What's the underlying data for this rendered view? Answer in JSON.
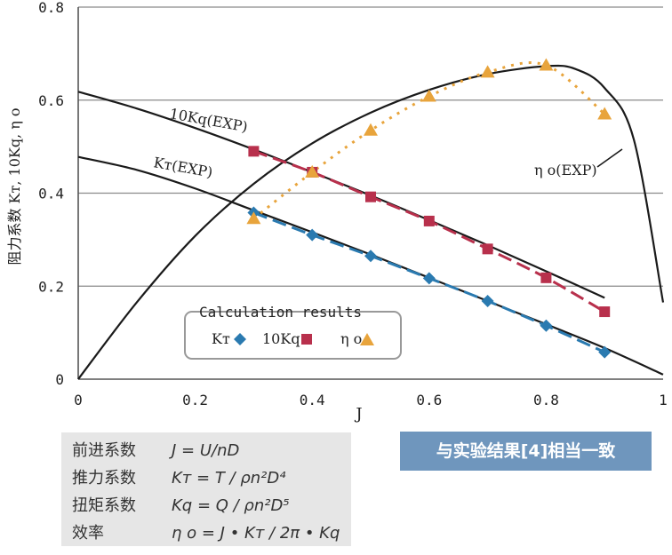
{
  "chart_data": {
    "type": "line",
    "xlabel": "J",
    "ylabel": "阻力系数  Kт, 10Kq, η o",
    "xlim": [
      0,
      1
    ],
    "ylim": [
      0,
      0.8
    ],
    "xticks": [
      "0",
      "0.2",
      "0.4",
      "0.6",
      "0.8",
      "1"
    ],
    "yticks": [
      "0",
      "0.2",
      "0.4",
      "0.6",
      "0.8"
    ],
    "grid": "horizontal",
    "curve_labels": {
      "kq": "10Kq(EXP)",
      "kt": "Kт(EXP)",
      "eta": "η o(EXP)"
    },
    "exp_curves": [
      {
        "key": "kt",
        "color": "#1a1a1a",
        "x": [
          0,
          0.1,
          0.2,
          0.3,
          0.4,
          0.5,
          0.6,
          0.7,
          0.8,
          0.9,
          1.0
        ],
        "y": [
          0.478,
          0.45,
          0.41,
          0.363,
          0.316,
          0.268,
          0.218,
          0.168,
          0.118,
          0.067,
          0.01
        ]
      },
      {
        "key": "kq",
        "color": "#1a1a1a",
        "x": [
          0,
          0.1,
          0.2,
          0.3,
          0.4,
          0.5,
          0.6,
          0.7,
          0.8,
          0.9
        ],
        "y": [
          0.618,
          0.582,
          0.54,
          0.494,
          0.445,
          0.395,
          0.342,
          0.288,
          0.232,
          0.175
        ]
      },
      {
        "key": "eta",
        "color": "#1a1a1a",
        "x": [
          0,
          0.1,
          0.2,
          0.3,
          0.4,
          0.5,
          0.6,
          0.7,
          0.8,
          0.85,
          0.9,
          0.95,
          1.0
        ],
        "y": [
          0,
          0.165,
          0.308,
          0.42,
          0.507,
          0.573,
          0.622,
          0.656,
          0.673,
          0.667,
          0.626,
          0.515,
          0.165
        ]
      }
    ],
    "series": [
      {
        "name": "Kт",
        "marker": "diamond",
        "color": "#2a7ab0",
        "x": [
          0.3,
          0.4,
          0.5,
          0.6,
          0.7,
          0.8,
          0.9
        ],
        "y": [
          0.358,
          0.31,
          0.265,
          0.217,
          0.168,
          0.115,
          0.058
        ]
      },
      {
        "name": "10Kq",
        "marker": "square",
        "color": "#b8304c",
        "x": [
          0.3,
          0.4,
          0.5,
          0.6,
          0.7,
          0.8,
          0.9
        ],
        "y": [
          0.49,
          0.445,
          0.392,
          0.34,
          0.28,
          0.218,
          0.145
        ]
      },
      {
        "name": "η o",
        "marker": "triangle",
        "color": "#e8a43c",
        "x": [
          0.3,
          0.4,
          0.5,
          0.6,
          0.7,
          0.8,
          0.9
        ],
        "y": [
          0.345,
          0.445,
          0.535,
          0.608,
          0.66,
          0.675,
          0.57
        ]
      }
    ],
    "legend": {
      "title": "Calculation results",
      "placement": "bottom-left"
    }
  },
  "formulas": [
    {
      "label": "前进系数",
      "expr": "J = U/nD"
    },
    {
      "label": "推力系数",
      "expr": "Kт = T / ρn²D⁴"
    },
    {
      "label": "扭矩系数",
      "expr": "Kq = Q / ρn²D⁵"
    },
    {
      "label": "效率",
      "expr": "η o = J • Kт / 2π • Kq"
    }
  ],
  "banner": "与实验结果[4]相当一致"
}
